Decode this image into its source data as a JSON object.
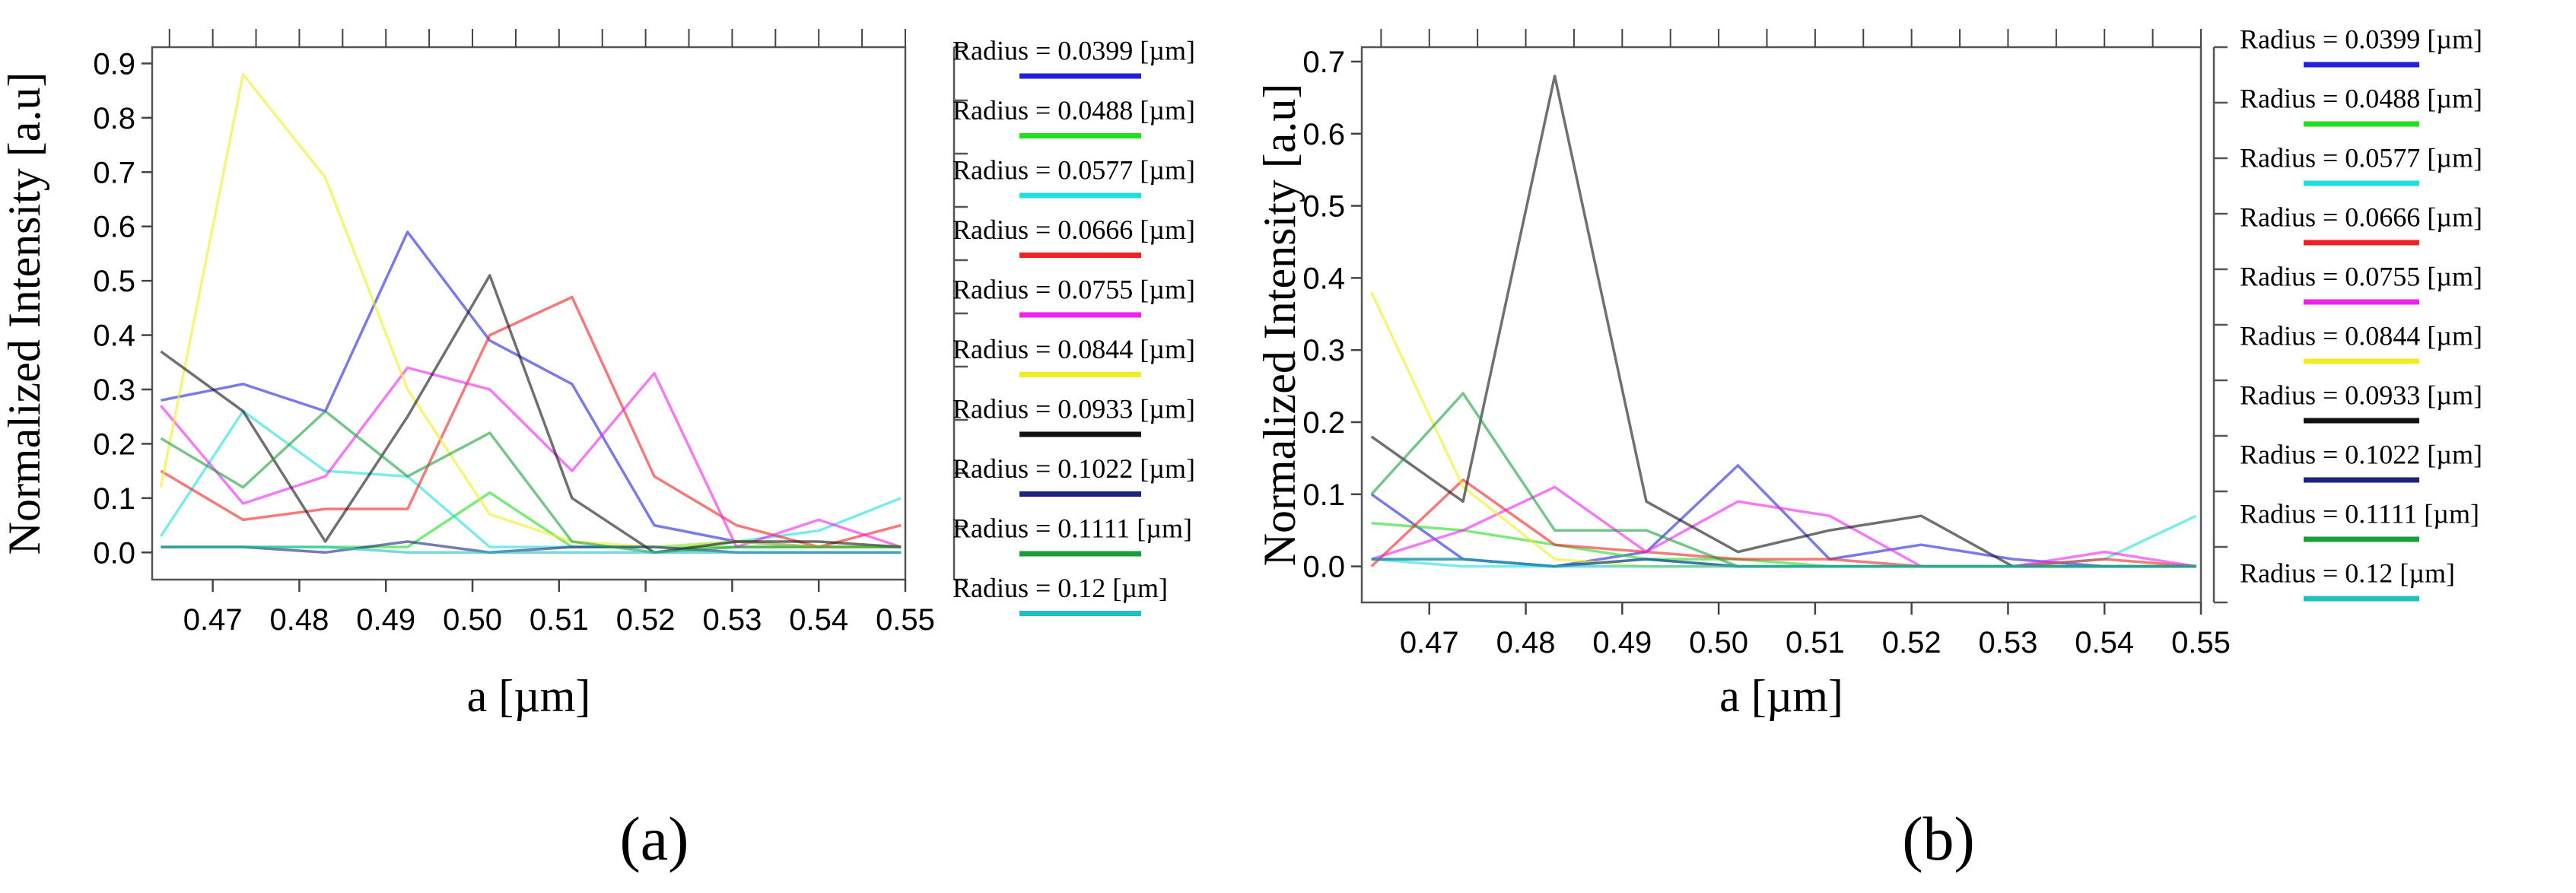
{
  "legend_labels": [
    "Radius = 0.0399 [µm]",
    "Radius = 0.0488 [µm]",
    "Radius = 0.0577 [µm]",
    "Radius = 0.0666 [µm]",
    "Radius = 0.0755 [µm]",
    "Radius = 0.0844 [µm]",
    "Radius = 0.0933 [µm]",
    "Radius = 0.1022 [µm]",
    "Radius = 0.1111 [µm]",
    "Radius = 0.12 [µm]"
  ],
  "series_colors": [
    "#2222dd",
    "#22dd22",
    "#22dddd",
    "#ee2222",
    "#ee22ee",
    "#eeee22",
    "#111111",
    "#1a237e",
    "#1b9e3a",
    "#20c0c0"
  ],
  "chart_data": [
    {
      "type": "line",
      "panel_label": "(a)",
      "xlabel": "a [µm]",
      "ylabel": "Normalized Intensity [a.u]",
      "xlim": [
        0.463,
        0.55
      ],
      "ylim": [
        -0.05,
        0.93
      ],
      "xticks": [
        0.47,
        0.48,
        0.49,
        0.5,
        0.51,
        0.52,
        0.53,
        0.54,
        0.55
      ],
      "xtick_labels": [
        "0.47",
        "0.48",
        "0.49",
        "0.50",
        "0.51",
        "0.52",
        "0.53",
        "0.54",
        "0.55"
      ],
      "yticks": [
        0,
        0.1,
        0.2,
        0.3,
        0.4,
        0.5,
        0.6,
        0.7,
        0.8,
        0.9
      ],
      "ytick_labels": [
        "0.0",
        "0.1",
        "0.2",
        "0.3",
        "0.4",
        "0.5",
        "0.6",
        "0.7",
        "0.8",
        "0.9"
      ],
      "x": [
        0.464,
        0.4735,
        0.483,
        0.4925,
        0.502,
        0.5115,
        0.521,
        0.5305,
        0.54,
        0.5495
      ],
      "series": [
        {
          "name": "Radius = 0.0399 [µm]",
          "values": [
            0.28,
            0.31,
            0.26,
            0.59,
            0.39,
            0.31,
            0.05,
            0.02,
            0.01,
            0.01
          ]
        },
        {
          "name": "Radius = 0.0488 [µm]",
          "values": [
            0.01,
            0.01,
            0.01,
            0.01,
            0.11,
            0.01,
            0.01,
            0.01,
            0.01,
            0.01
          ]
        },
        {
          "name": "Radius = 0.0577 [µm]",
          "values": [
            0.03,
            0.26,
            0.15,
            0.14,
            0.01,
            0.01,
            0.01,
            0.02,
            0.04,
            0.1
          ]
        },
        {
          "name": "Radius = 0.0666 [µm]",
          "values": [
            0.15,
            0.06,
            0.08,
            0.08,
            0.4,
            0.47,
            0.14,
            0.05,
            0.01,
            0.05
          ]
        },
        {
          "name": "Radius = 0.0755 [µm]",
          "values": [
            0.27,
            0.09,
            0.14,
            0.34,
            0.3,
            0.15,
            0.33,
            0.01,
            0.06,
            0.01
          ]
        },
        {
          "name": "Radius = 0.0844 [µm]",
          "values": [
            0.12,
            0.88,
            0.69,
            0.3,
            0.07,
            0.02,
            0.01,
            0.02,
            0.01,
            0.01
          ]
        },
        {
          "name": "Radius = 0.0933 [µm]",
          "values": [
            0.37,
            0.26,
            0.02,
            0.25,
            0.51,
            0.1,
            0.0,
            0.02,
            0.02,
            0.01
          ]
        },
        {
          "name": "Radius = 0.1022 [µm]",
          "values": [
            0.01,
            0.01,
            0.0,
            0.02,
            0.0,
            0.01,
            0.01,
            0.0,
            0.0,
            0.0
          ]
        },
        {
          "name": "Radius = 0.1111 [µm]",
          "values": [
            0.21,
            0.12,
            0.26,
            0.14,
            0.22,
            0.02,
            0.0,
            0.01,
            0.01,
            0.01
          ]
        },
        {
          "name": "Radius = 0.12 [µm]",
          "values": [
            0.01,
            0.01,
            0.01,
            0.0,
            0.0,
            0.0,
            0.0,
            0.0,
            0.0,
            0.0
          ]
        }
      ]
    },
    {
      "type": "line",
      "panel_label": "(b)",
      "xlabel": "a [µm]",
      "ylabel": "Normalized Intensity [a.u]",
      "xlim": [
        0.463,
        0.55
      ],
      "ylim": [
        -0.05,
        0.72
      ],
      "xticks": [
        0.47,
        0.48,
        0.49,
        0.5,
        0.51,
        0.52,
        0.53,
        0.54,
        0.55
      ],
      "xtick_labels": [
        "0.47",
        "0.48",
        "0.49",
        "0.50",
        "0.51",
        "0.52",
        "0.53",
        "0.54",
        "0.55"
      ],
      "yticks": [
        0,
        0.1,
        0.2,
        0.3,
        0.4,
        0.5,
        0.6,
        0.7
      ],
      "ytick_labels": [
        "0.0",
        "0.1",
        "0.2",
        "0.3",
        "0.4",
        "0.5",
        "0.6",
        "0.7"
      ],
      "x": [
        0.464,
        0.4735,
        0.483,
        0.4925,
        0.502,
        0.5115,
        0.521,
        0.5305,
        0.54,
        0.5495
      ],
      "series": [
        {
          "name": "Radius = 0.0399 [µm]",
          "values": [
            0.1,
            0.01,
            0.0,
            0.02,
            0.14,
            0.01,
            0.03,
            0.01,
            0.0,
            0.0
          ]
        },
        {
          "name": "Radius = 0.0488 [µm]",
          "values": [
            0.06,
            0.05,
            0.03,
            0.01,
            0.01,
            0.0,
            0.0,
            0.0,
            0.0,
            0.0
          ]
        },
        {
          "name": "Radius = 0.0577 [µm]",
          "values": [
            0.01,
            0.0,
            0.0,
            0.01,
            0.0,
            0.0,
            0.0,
            0.0,
            0.01,
            0.07
          ]
        },
        {
          "name": "Radius = 0.0666 [µm]",
          "values": [
            0.0,
            0.12,
            0.03,
            0.02,
            0.01,
            0.01,
            0.0,
            0.0,
            0.01,
            0.0
          ]
        },
        {
          "name": "Radius = 0.0755 [µm]",
          "values": [
            0.01,
            0.05,
            0.11,
            0.02,
            0.09,
            0.07,
            0.0,
            0.0,
            0.02,
            0.0
          ]
        },
        {
          "name": "Radius = 0.0844 [µm]",
          "values": [
            0.38,
            0.11,
            0.01,
            0.0,
            0.0,
            0.0,
            0.0,
            0.0,
            0.0,
            0.0
          ]
        },
        {
          "name": "Radius = 0.0933 [µm]",
          "values": [
            0.18,
            0.09,
            0.68,
            0.09,
            0.02,
            0.05,
            0.07,
            0.0,
            0.0,
            0.0
          ]
        },
        {
          "name": "Radius = 0.1022 [µm]",
          "values": [
            0.01,
            0.01,
            0.0,
            0.01,
            0.0,
            0.0,
            0.0,
            0.0,
            0.0,
            0.0
          ]
        },
        {
          "name": "Radius = 0.1111 [µm]",
          "values": [
            0.1,
            0.24,
            0.05,
            0.05,
            0.0,
            0.0,
            0.0,
            0.0,
            0.0,
            0.0
          ]
        },
        {
          "name": "Radius = 0.12 [µm]",
          "values": [
            0.01,
            0.01,
            0.0,
            0.0,
            0.0,
            0.0,
            0.0,
            0.0,
            0.0,
            0.0
          ]
        }
      ]
    }
  ]
}
